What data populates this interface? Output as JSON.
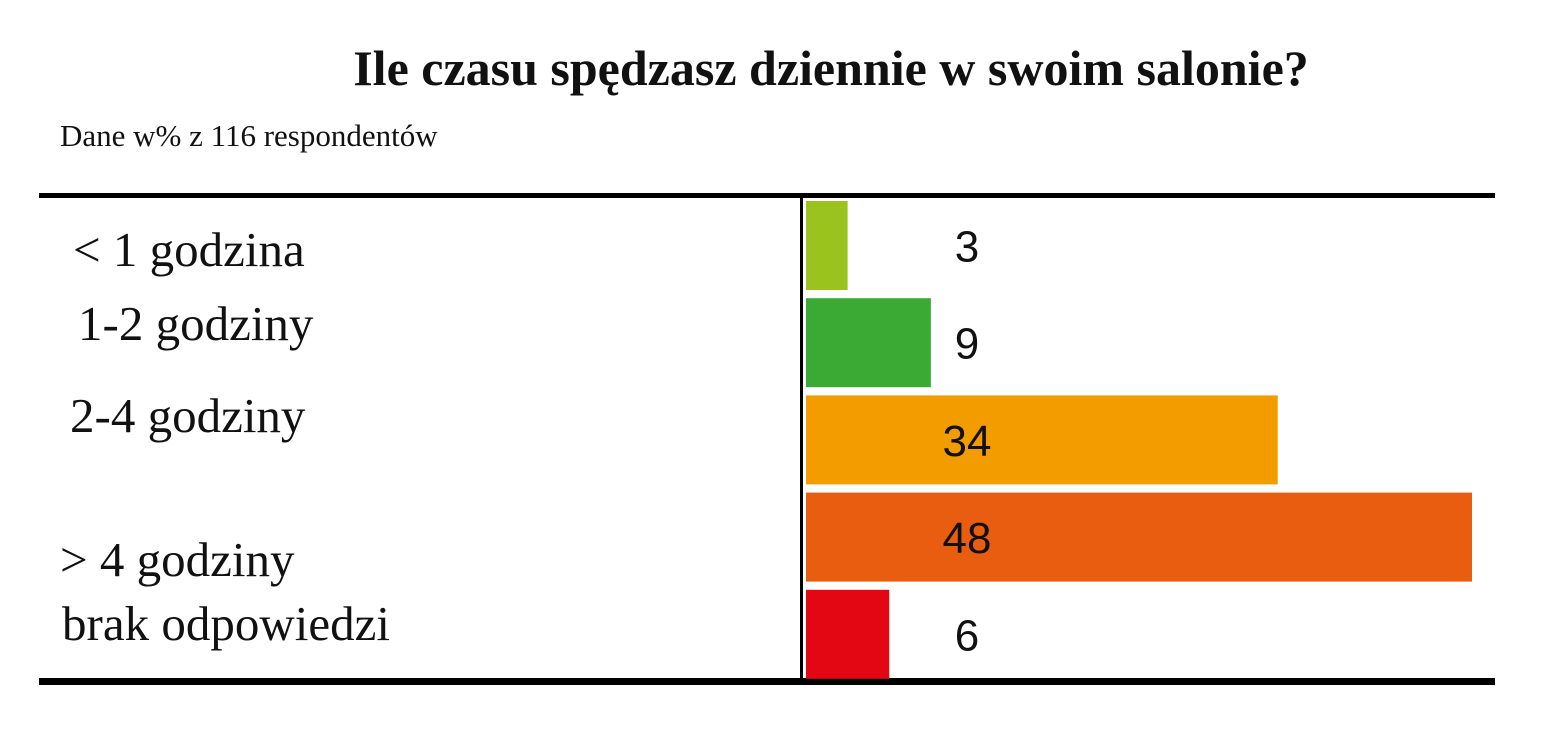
{
  "chart_data": {
    "type": "bar",
    "orientation": "horizontal",
    "title": "Ile czasu spędzasz dziennie w swoim salonie?",
    "subtitle": "Dane w% z 116 respondentów",
    "categories": [
      "< 1 godzina",
      "1-2 godziny",
      "2-4 godziny",
      "> 4 godziny",
      "brak odpowiedzi"
    ],
    "values": [
      3,
      9,
      34,
      48,
      6
    ],
    "value_labels": [
      "3",
      "9",
      "34",
      "48",
      "6"
    ],
    "colors": [
      "#9bc31d",
      "#3aaa35",
      "#f39c00",
      "#e85d0f",
      "#e30613"
    ],
    "xlim": [
      0,
      48
    ],
    "grid": false,
    "legend": "none"
  }
}
